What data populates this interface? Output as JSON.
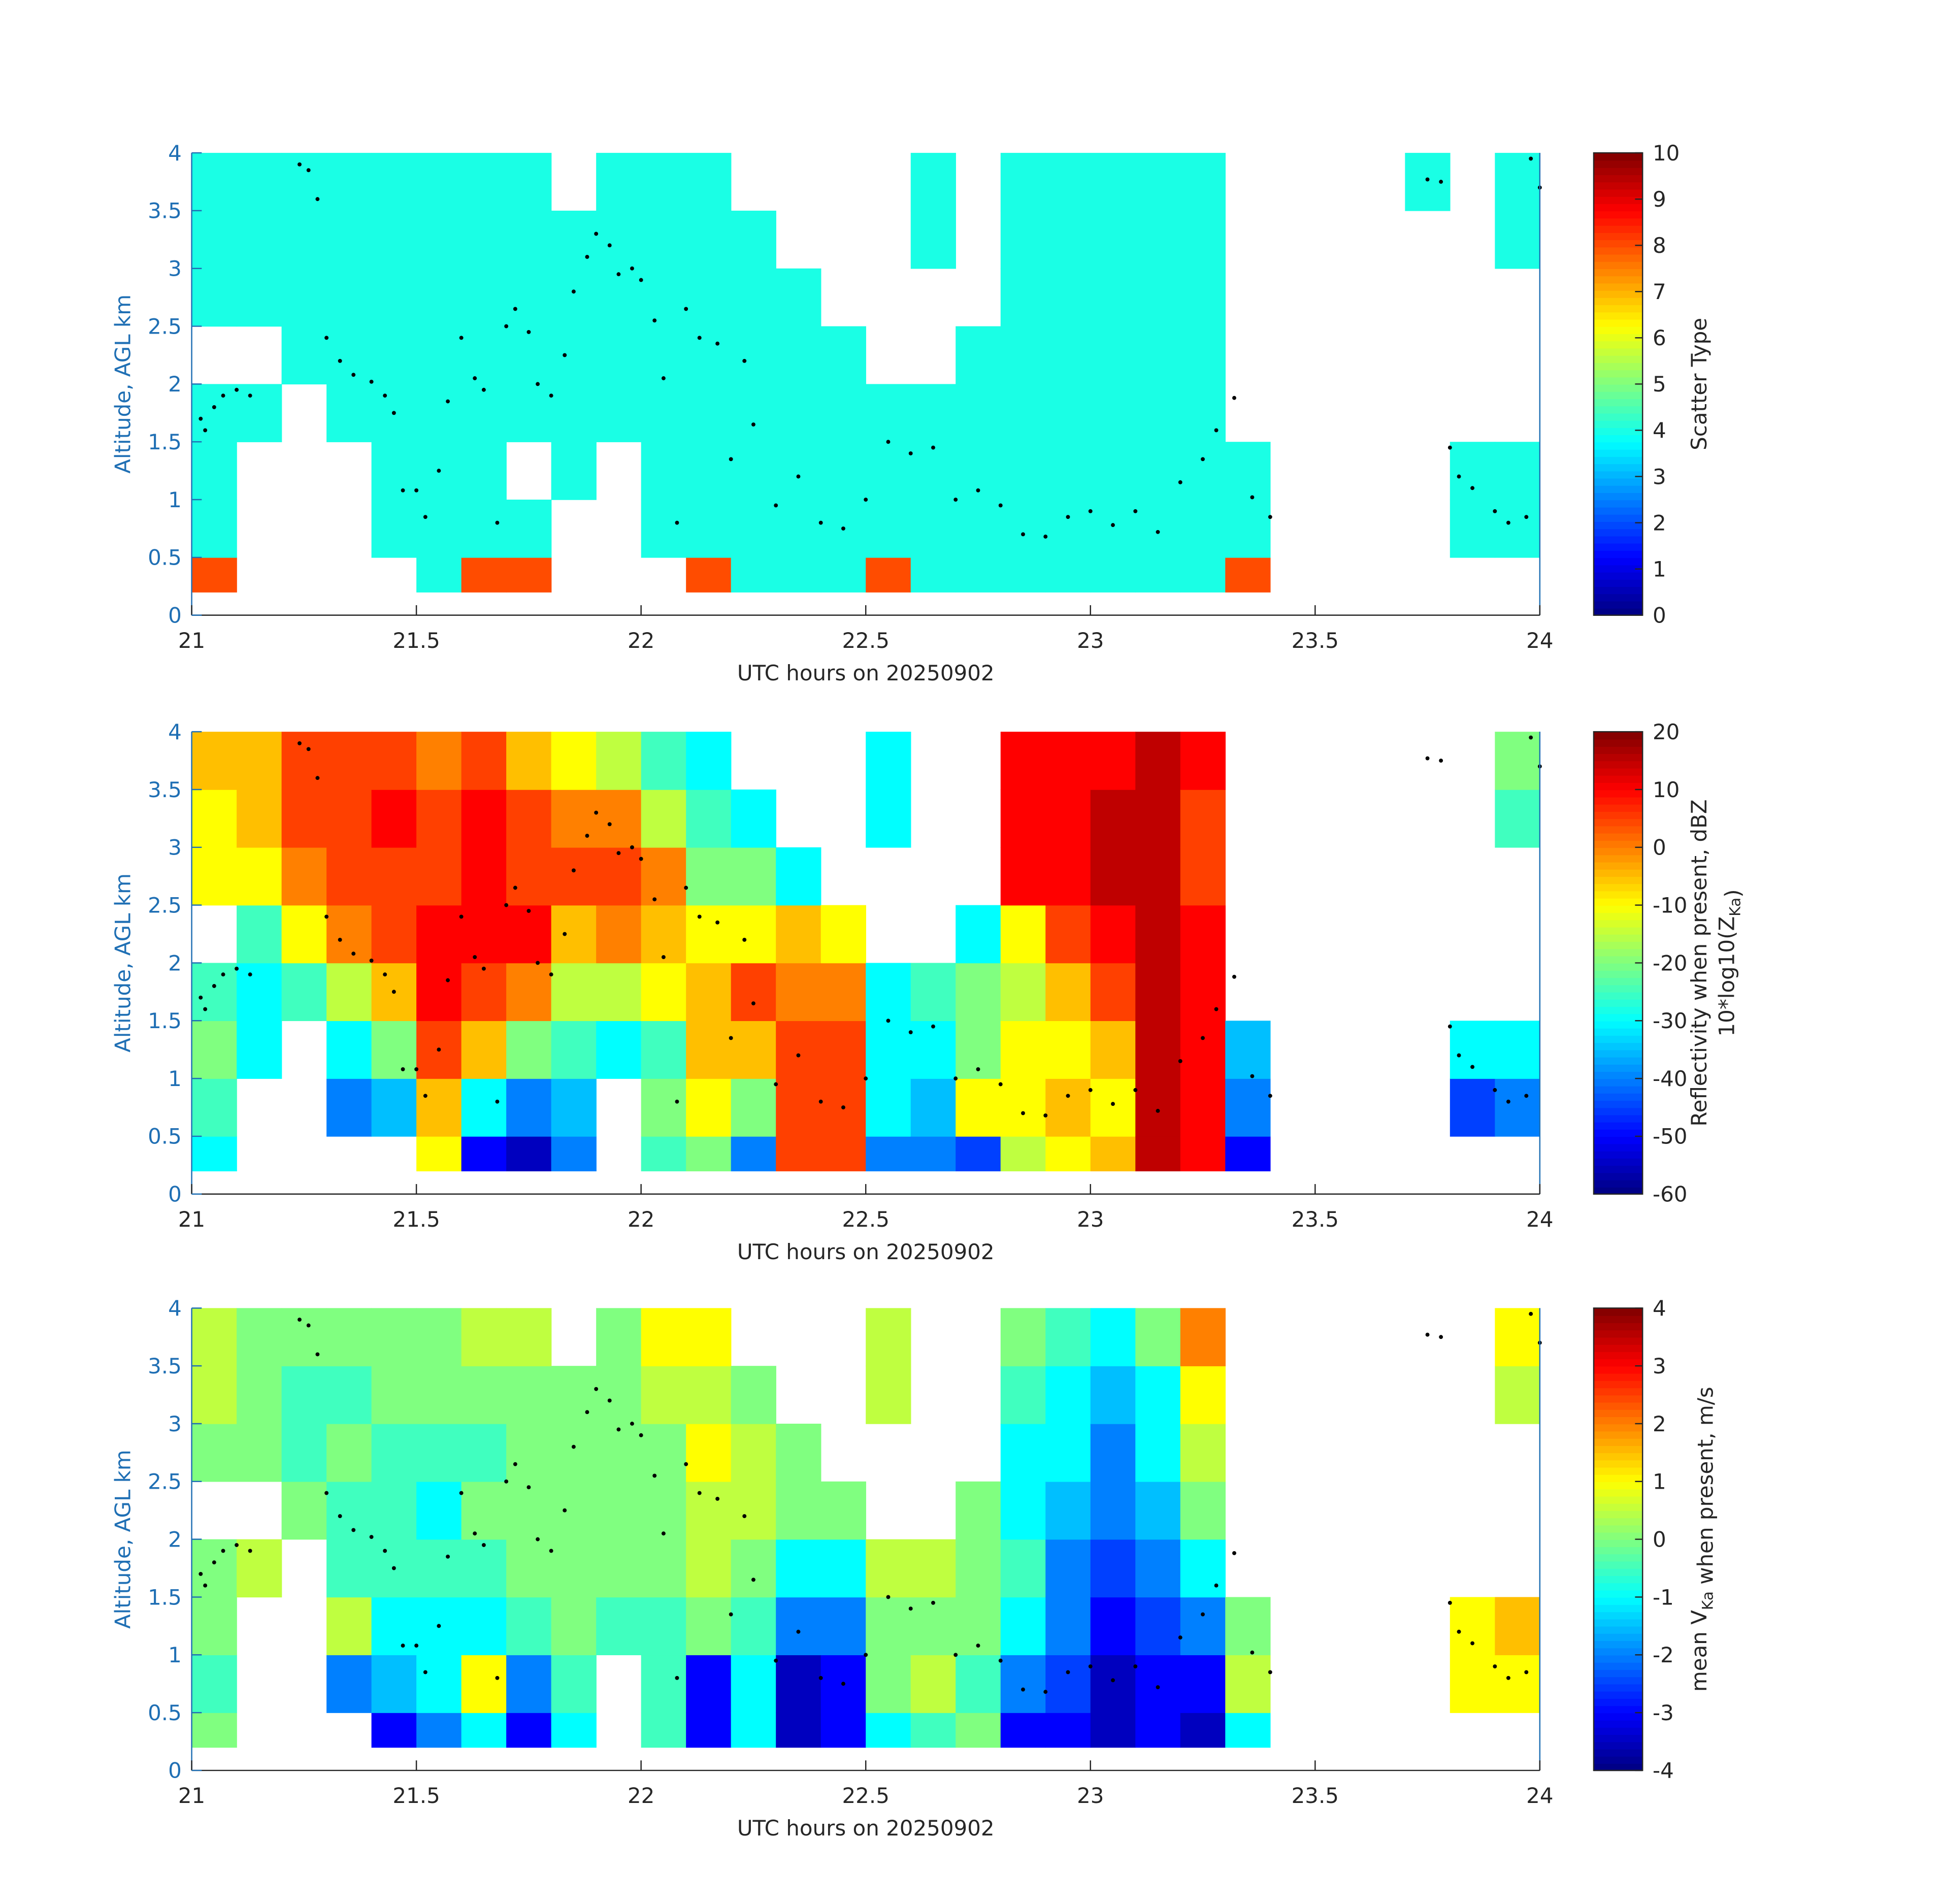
{
  "chart_data": [
    {
      "type": "heatmap",
      "colormap": "jet",
      "xlabel": "UTC hours on 20250902",
      "ylabel": "Altitude, AGL km",
      "xlim": [
        21,
        24
      ],
      "ylim": [
        0,
        4
      ],
      "xticks": [
        21,
        21.5,
        22,
        22.5,
        23,
        23.5,
        24
      ],
      "yticks": [
        0,
        0.5,
        1,
        1.5,
        2,
        2.5,
        3,
        3.5,
        4
      ],
      "xbins": [
        21,
        21.1,
        21.2,
        21.3,
        21.4,
        21.5,
        21.6,
        21.7,
        21.8,
        21.9,
        22,
        22.1,
        22.2,
        22.3,
        22.4,
        22.5,
        22.6,
        22.7,
        22.8,
        22.9,
        23,
        23.1,
        23.2,
        23.3,
        23.4,
        23.5,
        23.6,
        23.7,
        23.8,
        23.9,
        24
      ],
      "ybins": [
        0.2,
        0.5,
        1,
        1.5,
        2,
        2.5,
        3,
        3.5,
        4
      ],
      "clim": [
        0,
        10
      ],
      "cticks": [
        0,
        1,
        2,
        3,
        4,
        5,
        6,
        7,
        8,
        9,
        10
      ],
      "clabel": [
        [
          "Scatter Type"
        ]
      ],
      "values": [
        [
          8,
          4,
          4,
          4,
          null,
          4,
          4,
          4
        ],
        [
          null,
          null,
          null,
          4,
          null,
          4,
          4,
          4
        ],
        [
          null,
          null,
          null,
          null,
          4,
          4,
          4,
          4
        ],
        [
          null,
          null,
          null,
          4,
          4,
          4,
          4,
          4
        ],
        [
          null,
          4,
          4,
          4,
          4,
          4,
          4,
          4
        ],
        [
          4,
          4,
          4,
          4,
          4,
          4,
          4,
          4
        ],
        [
          8,
          4,
          4,
          4,
          4,
          4,
          4,
          4
        ],
        [
          8,
          4,
          null,
          4,
          4,
          4,
          4,
          4
        ],
        [
          null,
          null,
          4,
          4,
          4,
          4,
          4,
          null
        ],
        [
          null,
          null,
          null,
          4,
          4,
          4,
          4,
          4
        ],
        [
          null,
          4,
          4,
          4,
          4,
          4,
          4,
          4
        ],
        [
          8,
          4,
          4,
          4,
          4,
          4,
          4,
          4
        ],
        [
          4,
          4,
          4,
          4,
          4,
          4,
          4,
          null
        ],
        [
          4,
          4,
          4,
          4,
          4,
          4,
          null,
          null
        ],
        [
          4,
          4,
          4,
          4,
          4,
          null,
          null,
          null
        ],
        [
          8,
          4,
          4,
          4,
          null,
          null,
          null,
          null
        ],
        [
          4,
          4,
          4,
          4,
          null,
          null,
          4,
          4
        ],
        [
          4,
          4,
          4,
          4,
          4,
          null,
          null,
          null
        ],
        [
          4,
          4,
          4,
          4,
          4,
          4,
          4,
          4
        ],
        [
          4,
          4,
          4,
          4,
          4,
          4,
          4,
          4
        ],
        [
          4,
          4,
          4,
          4,
          4,
          4,
          4,
          4
        ],
        [
          4,
          4,
          4,
          4,
          4,
          4,
          4,
          4
        ],
        [
          4,
          4,
          4,
          4,
          4,
          4,
          4,
          4
        ],
        [
          8,
          4,
          4,
          null,
          null,
          null,
          null,
          null
        ],
        [
          null,
          null,
          null,
          null,
          null,
          null,
          null,
          null
        ],
        [
          null,
          null,
          null,
          null,
          null,
          null,
          null,
          null
        ],
        [
          null,
          null,
          null,
          null,
          null,
          null,
          null,
          null
        ],
        [
          null,
          null,
          null,
          null,
          null,
          null,
          null,
          4
        ],
        [
          null,
          4,
          4,
          null,
          null,
          null,
          null,
          null
        ],
        [
          null,
          4,
          4,
          null,
          null,
          null,
          4,
          4
        ]
      ],
      "dots": {
        "x": [
          21.02,
          21.03,
          21.05,
          21.07,
          21.1,
          21.13,
          21.24,
          21.26,
          21.28,
          21.3,
          21.33,
          21.36,
          21.4,
          21.43,
          21.45,
          21.47,
          21.5,
          21.52,
          21.55,
          21.57,
          21.6,
          21.63,
          21.65,
          21.68,
          21.7,
          21.72,
          21.75,
          21.77,
          21.8,
          21.83,
          21.85,
          21.88,
          21.9,
          21.93,
          21.95,
          21.98,
          22.0,
          22.03,
          22.05,
          22.08,
          22.1,
          22.13,
          22.17,
          22.2,
          22.23,
          22.25,
          22.3,
          22.35,
          22.4,
          22.45,
          22.5,
          22.55,
          22.6,
          22.65,
          22.7,
          22.75,
          22.8,
          22.85,
          22.9,
          22.95,
          23.0,
          23.05,
          23.1,
          23.15,
          23.2,
          23.25,
          23.28,
          23.32,
          23.36,
          23.4,
          23.75,
          23.78,
          23.8,
          23.82,
          23.85,
          23.9,
          23.93,
          23.97,
          23.98,
          24.0
        ],
        "y": [
          1.7,
          1.6,
          1.8,
          1.9,
          1.95,
          1.9,
          3.9,
          3.85,
          3.6,
          2.4,
          2.2,
          2.08,
          2.02,
          1.9,
          1.75,
          1.08,
          1.08,
          0.85,
          1.25,
          1.85,
          2.4,
          2.05,
          1.95,
          0.8,
          2.5,
          2.65,
          2.45,
          2.0,
          1.9,
          2.25,
          2.8,
          3.1,
          3.3,
          3.2,
          2.95,
          3.0,
          2.9,
          2.55,
          2.05,
          0.8,
          2.65,
          2.4,
          2.35,
          1.35,
          2.2,
          1.65,
          0.95,
          1.2,
          0.8,
          0.75,
          1.0,
          1.5,
          1.4,
          1.45,
          1.0,
          1.08,
          0.95,
          0.7,
          0.68,
          0.85,
          0.9,
          0.78,
          0.9,
          0.72,
          1.15,
          1.35,
          1.6,
          1.88,
          1.02,
          0.85,
          3.77,
          3.75,
          1.45,
          1.2,
          1.1,
          0.9,
          0.8,
          0.85,
          3.95,
          3.7
        ]
      }
    },
    {
      "type": "heatmap",
      "colormap": "jet",
      "xlabel": "UTC hours on 20250902",
      "ylabel": "Altitude, AGL km",
      "xlim": [
        21,
        24
      ],
      "ylim": [
        0,
        4
      ],
      "xticks": [
        21,
        21.5,
        22,
        22.5,
        23,
        23.5,
        24
      ],
      "yticks": [
        0,
        0.5,
        1,
        1.5,
        2,
        2.5,
        3,
        3.5,
        4
      ],
      "xbins": [
        21,
        21.1,
        21.2,
        21.3,
        21.4,
        21.5,
        21.6,
        21.7,
        21.8,
        21.9,
        22,
        22.1,
        22.2,
        22.3,
        22.4,
        22.5,
        22.6,
        22.7,
        22.8,
        22.9,
        23,
        23.1,
        23.2,
        23.3,
        23.4,
        23.5,
        23.6,
        23.7,
        23.8,
        23.9,
        24
      ],
      "ybins": [
        0.2,
        0.5,
        1,
        1.5,
        2,
        2.5,
        3,
        3.5,
        4
      ],
      "clim": [
        -60,
        20
      ],
      "cticks": [
        -60,
        -50,
        -40,
        -30,
        -20,
        -10,
        0,
        10,
        20
      ],
      "clabel": [
        [
          "Reflectivity when present, dBZ"
        ],
        [
          "10*log10(Z",
          {
            "sub": "Ka"
          },
          ")"
        ]
      ],
      "values": [
        [
          -30,
          -25,
          -20,
          -25,
          null,
          -10,
          -10,
          -5
        ],
        [
          null,
          null,
          -30,
          -30,
          -25,
          -10,
          -5,
          -5
        ],
        [
          null,
          null,
          null,
          -25,
          -10,
          0,
          5,
          5
        ],
        [
          null,
          -40,
          -30,
          -15,
          0,
          5,
          5,
          5
        ],
        [
          null,
          -35,
          -20,
          -5,
          5,
          5,
          10,
          5
        ],
        [
          -10,
          -5,
          5,
          10,
          10,
          5,
          5,
          0
        ],
        [
          -50,
          -30,
          -5,
          5,
          10,
          10,
          10,
          5
        ],
        [
          -55,
          -40,
          -20,
          0,
          10,
          5,
          5,
          -5
        ],
        [
          -40,
          -35,
          -25,
          -15,
          -5,
          5,
          0,
          -10
        ],
        [
          null,
          null,
          -30,
          -15,
          0,
          5,
          0,
          -15
        ],
        [
          -25,
          -20,
          -25,
          -10,
          -5,
          0,
          -15,
          -25
        ],
        [
          -20,
          -10,
          -5,
          -5,
          -10,
          -20,
          -25,
          -30
        ],
        [
          -40,
          -20,
          -5,
          5,
          -10,
          -20,
          -30,
          null
        ],
        [
          5,
          5,
          5,
          0,
          -5,
          -30,
          null,
          null
        ],
        [
          5,
          5,
          5,
          0,
          -10,
          null,
          null,
          null
        ],
        [
          -40,
          -30,
          -30,
          -30,
          null,
          null,
          -30,
          -30
        ],
        [
          -40,
          -35,
          -30,
          -25,
          null,
          null,
          null,
          null
        ],
        [
          -45,
          -10,
          -20,
          -20,
          -30,
          null,
          null,
          null
        ],
        [
          -15,
          -10,
          -10,
          -15,
          -10,
          10,
          10,
          10
        ],
        [
          -10,
          -5,
          -10,
          -5,
          5,
          10,
          10,
          10
        ],
        [
          -5,
          -10,
          -5,
          5,
          10,
          15,
          15,
          10
        ],
        [
          15,
          15,
          15,
          15,
          15,
          15,
          15,
          15
        ],
        [
          10,
          10,
          10,
          10,
          10,
          5,
          5,
          10
        ],
        [
          -50,
          -40,
          -35,
          null,
          null,
          null,
          null,
          null
        ],
        [
          null,
          null,
          null,
          null,
          null,
          null,
          null,
          null
        ],
        [
          null,
          null,
          null,
          null,
          null,
          null,
          null,
          null
        ],
        [
          null,
          null,
          null,
          null,
          null,
          null,
          null,
          null
        ],
        [
          null,
          null,
          null,
          null,
          null,
          null,
          null,
          null
        ],
        [
          null,
          -45,
          -30,
          null,
          null,
          null,
          null,
          null
        ],
        [
          null,
          -40,
          -30,
          null,
          null,
          null,
          -25,
          -20
        ]
      ]
    },
    {
      "type": "heatmap",
      "colormap": "jet",
      "xlabel": "UTC hours on 20250902",
      "ylabel": "Altitude, AGL km",
      "xlim": [
        21,
        24
      ],
      "ylim": [
        0,
        4
      ],
      "xticks": [
        21,
        21.5,
        22,
        22.5,
        23,
        23.5,
        24
      ],
      "yticks": [
        0,
        0.5,
        1,
        1.5,
        2,
        2.5,
        3,
        3.5,
        4
      ],
      "xbins": [
        21,
        21.1,
        21.2,
        21.3,
        21.4,
        21.5,
        21.6,
        21.7,
        21.8,
        21.9,
        22,
        22.1,
        22.2,
        22.3,
        22.4,
        22.5,
        22.6,
        22.7,
        22.8,
        22.9,
        23,
        23.1,
        23.2,
        23.3,
        23.4,
        23.5,
        23.6,
        23.7,
        23.8,
        23.9,
        24
      ],
      "ybins": [
        0.2,
        0.5,
        1,
        1.5,
        2,
        2.5,
        3,
        3.5,
        4
      ],
      "clim": [
        -4,
        4
      ],
      "cticks": [
        -4,
        -3,
        -2,
        -1,
        0,
        1,
        2,
        3,
        4
      ],
      "clabel": [
        [
          "mean V",
          {
            "sub": "Ka"
          },
          " when present, m/s"
        ]
      ],
      "values": [
        [
          0,
          -0.5,
          0,
          0,
          null,
          0,
          0.5,
          0.5
        ],
        [
          null,
          null,
          null,
          0.5,
          null,
          0,
          0,
          0
        ],
        [
          null,
          null,
          null,
          null,
          0,
          -0.5,
          -0.5,
          0
        ],
        [
          null,
          -2,
          0.5,
          -0.5,
          -0.5,
          0,
          -0.5,
          0
        ],
        [
          -3,
          -1.5,
          -1,
          -0.5,
          -0.5,
          -0.5,
          0,
          0
        ],
        [
          -2,
          -1,
          -1,
          -0.5,
          -1,
          -0.5,
          0,
          0
        ],
        [
          -1,
          1,
          -1,
          -0.5,
          0,
          -0.5,
          0,
          0.5
        ],
        [
          -3,
          -2,
          -0.5,
          0,
          0,
          0,
          0,
          0.5
        ],
        [
          -1,
          -0.5,
          0,
          0,
          0,
          0,
          0,
          null
        ],
        [
          null,
          null,
          -0.5,
          0,
          0,
          0,
          0,
          0
        ],
        [
          -0.5,
          -0.5,
          -0.5,
          0,
          0,
          0,
          0.5,
          1
        ],
        [
          -3,
          -3,
          0,
          0.5,
          0.5,
          1,
          0.5,
          1
        ],
        [
          -1,
          -1,
          -0.5,
          0,
          0.5,
          0.5,
          0,
          null
        ],
        [
          -3.5,
          -3.5,
          -2,
          -1,
          0,
          0,
          null,
          null
        ],
        [
          -3,
          -3,
          -2,
          -1,
          0,
          null,
          null,
          null
        ],
        [
          -1,
          0,
          0,
          0.5,
          null,
          null,
          0.5,
          0.5
        ],
        [
          -0.5,
          0.5,
          0,
          0.5,
          null,
          null,
          null,
          null
        ],
        [
          0,
          -0.5,
          0,
          0,
          0,
          null,
          null,
          null
        ],
        [
          -3,
          -2,
          -1,
          -0.5,
          -1,
          -1,
          -0.5,
          0
        ],
        [
          -3,
          -2.5,
          -2,
          -2,
          -1.5,
          -1,
          -1,
          -0.5
        ],
        [
          -3.5,
          -3.5,
          -3,
          -2.5,
          -2,
          -2,
          -1.5,
          -1
        ],
        [
          -3,
          -3,
          -2.5,
          -2,
          -1.5,
          -1,
          -1,
          0
        ],
        [
          -3.5,
          -3,
          -2,
          -1,
          0,
          0.5,
          1,
          2
        ],
        [
          -1,
          0.5,
          0,
          null,
          null,
          null,
          null,
          null
        ],
        [
          null,
          null,
          null,
          null,
          null,
          null,
          null,
          null
        ],
        [
          null,
          null,
          null,
          null,
          null,
          null,
          null,
          null
        ],
        [
          null,
          null,
          null,
          null,
          null,
          null,
          null,
          null
        ],
        [
          null,
          null,
          null,
          null,
          null,
          null,
          null,
          null
        ],
        [
          null,
          1,
          1,
          null,
          null,
          null,
          null,
          null
        ],
        [
          null,
          1,
          1.5,
          null,
          null,
          null,
          0.5,
          1
        ]
      ]
    }
  ]
}
